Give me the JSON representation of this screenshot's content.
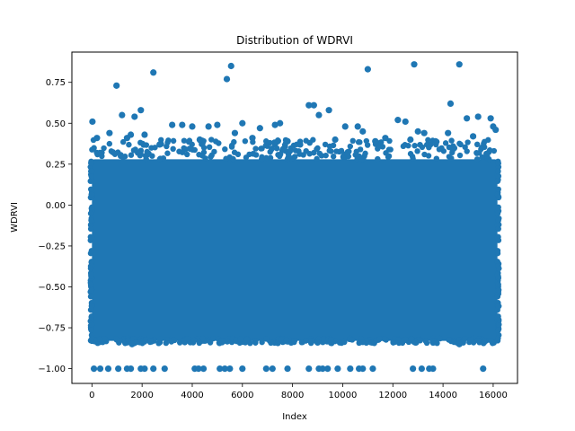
{
  "chart_data": {
    "type": "scatter",
    "title": "Distribution of WDRVI",
    "xlabel": "Index",
    "ylabel": "WDRVI",
    "xlim": [
      -800,
      16970
    ],
    "ylim": [
      -1.09,
      0.935
    ],
    "xticks": [
      0,
      2000,
      4000,
      6000,
      8000,
      10000,
      12000,
      14000,
      16000
    ],
    "xtick_labels": [
      "0",
      "2000",
      "4000",
      "6000",
      "8000",
      "10000",
      "12000",
      "14000",
      "16000"
    ],
    "yticks": [
      -1.0,
      -0.75,
      -0.5,
      -0.25,
      0.0,
      0.25,
      0.5,
      0.75
    ],
    "ytick_labels": [
      "−1.00",
      "−0.75",
      "−0.50",
      "−0.25",
      "0.00",
      "0.25",
      "0.50",
      "0.75"
    ],
    "grid": false,
    "legend": "none",
    "n_points_approx": 16200,
    "dense_band": {
      "x_range": [
        0,
        16170
      ],
      "y_range": [
        -0.83,
        0.28
      ]
    },
    "series": [
      {
        "color": "#1f77b4",
        "marker": "circle",
        "points": [
          [
            20,
            0.51
          ],
          [
            980,
            0.73
          ],
          [
            2450,
            0.81
          ],
          [
            5550,
            0.85
          ],
          [
            5380,
            0.77
          ],
          [
            11000,
            0.83
          ],
          [
            12850,
            0.86
          ],
          [
            14650,
            0.86
          ],
          [
            14300,
            0.62
          ],
          [
            1200,
            0.55
          ],
          [
            1700,
            0.54
          ],
          [
            1950,
            0.58
          ],
          [
            1550,
            0.43
          ],
          [
            2100,
            0.43
          ],
          [
            3200,
            0.49
          ],
          [
            3600,
            0.49
          ],
          [
            4000,
            0.48
          ],
          [
            4650,
            0.48
          ],
          [
            5000,
            0.49
          ],
          [
            6000,
            0.5
          ],
          [
            6700,
            0.47
          ],
          [
            7300,
            0.49
          ],
          [
            7500,
            0.5
          ],
          [
            8650,
            0.61
          ],
          [
            8850,
            0.61
          ],
          [
            9050,
            0.55
          ],
          [
            9450,
            0.58
          ],
          [
            10100,
            0.48
          ],
          [
            10600,
            0.48
          ],
          [
            10800,
            0.45
          ],
          [
            12200,
            0.52
          ],
          [
            12500,
            0.51
          ],
          [
            13000,
            0.45
          ],
          [
            13250,
            0.44
          ],
          [
            14200,
            0.44
          ],
          [
            14950,
            0.53
          ],
          [
            15400,
            0.54
          ],
          [
            15900,
            0.53
          ],
          [
            16000,
            0.48
          ],
          [
            200,
            0.41
          ],
          [
            700,
            0.44
          ],
          [
            1400,
            0.41
          ],
          [
            2700,
            0.37
          ],
          [
            4300,
            0.4
          ],
          [
            5700,
            0.44
          ],
          [
            6400,
            0.41
          ],
          [
            7800,
            0.39
          ],
          [
            8300,
            0.37
          ],
          [
            9700,
            0.4
          ],
          [
            11300,
            0.39
          ],
          [
            11700,
            0.41
          ],
          [
            12700,
            0.4
          ],
          [
            13700,
            0.39
          ],
          [
            15200,
            0.42
          ],
          [
            16100,
            0.46
          ],
          [
            80,
            -1.0
          ],
          [
            330,
            -1.0
          ],
          [
            650,
            -1.0
          ],
          [
            1050,
            -1.0
          ],
          [
            1400,
            -1.0
          ],
          [
            1550,
            -1.0
          ],
          [
            1950,
            -1.0
          ],
          [
            2100,
            -1.0
          ],
          [
            2450,
            -1.0
          ],
          [
            2900,
            -1.0
          ],
          [
            4100,
            -1.0
          ],
          [
            4250,
            -1.0
          ],
          [
            4450,
            -1.0
          ],
          [
            5100,
            -1.0
          ],
          [
            5300,
            -1.0
          ],
          [
            5500,
            -1.0
          ],
          [
            6000,
            -1.0
          ],
          [
            6950,
            -1.0
          ],
          [
            7200,
            -1.0
          ],
          [
            7800,
            -1.0
          ],
          [
            8650,
            -1.0
          ],
          [
            9050,
            -1.0
          ],
          [
            9200,
            -1.0
          ],
          [
            9400,
            -1.0
          ],
          [
            9800,
            -1.0
          ],
          [
            10300,
            -1.0
          ],
          [
            10650,
            -1.0
          ],
          [
            10800,
            -1.0
          ],
          [
            11200,
            -1.0
          ],
          [
            12800,
            -1.0
          ],
          [
            13150,
            -1.0
          ],
          [
            13450,
            -1.0
          ],
          [
            13600,
            -1.0
          ],
          [
            15600,
            -1.0
          ],
          [
            1600,
            -0.85
          ],
          [
            14650,
            -0.85
          ],
          [
            5200,
            -0.83
          ],
          [
            9000,
            -0.84
          ],
          [
            12900,
            -0.84
          ]
        ]
      }
    ]
  }
}
